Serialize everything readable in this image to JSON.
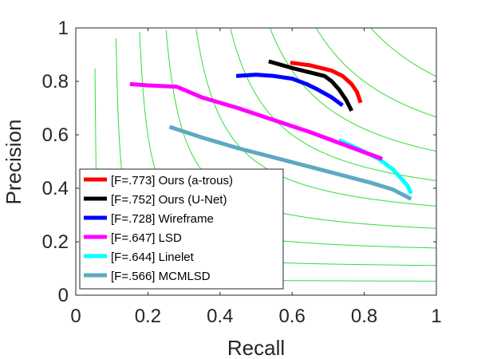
{
  "chart_data": {
    "type": "line",
    "title": "",
    "xlabel": "Recall",
    "ylabel": "Precision",
    "xlim": [
      0,
      1
    ],
    "ylim": [
      0,
      1
    ],
    "xticks": [
      "0",
      "0.2",
      "0.4",
      "0.6",
      "0.8",
      "1"
    ],
    "yticks": [
      "0",
      "0.2",
      "0.4",
      "0.6",
      "0.8",
      "1"
    ],
    "grid": false,
    "legend_position": "bottom-left",
    "iso_f_curve_color": "#33dd33",
    "iso_f_values": [
      0.1,
      0.2,
      0.3,
      0.4,
      0.5,
      0.6,
      0.7,
      0.8,
      0.9
    ],
    "series": [
      {
        "name": "[F=.773] Ours (a-trous)",
        "color": "#ff0000",
        "x": [
          0.595,
          0.65,
          0.71,
          0.74,
          0.765,
          0.78,
          0.79
        ],
        "y": [
          0.87,
          0.86,
          0.84,
          0.82,
          0.79,
          0.76,
          0.72
        ]
      },
      {
        "name": "[F=.752] Ours (U-Net)",
        "color": "#000000",
        "x": [
          0.535,
          0.6,
          0.66,
          0.69,
          0.71,
          0.73,
          0.75,
          0.765
        ],
        "y": [
          0.875,
          0.85,
          0.83,
          0.82,
          0.8,
          0.77,
          0.73,
          0.69
        ]
      },
      {
        "name": "[F=.728] Wireframe",
        "color": "#0000ff",
        "x": [
          0.445,
          0.5,
          0.55,
          0.6,
          0.64,
          0.67,
          0.69,
          0.71,
          0.74
        ],
        "y": [
          0.82,
          0.825,
          0.82,
          0.81,
          0.79,
          0.77,
          0.755,
          0.74,
          0.71
        ]
      },
      {
        "name": "[F=.647] LSD",
        "color": "#ff00ff",
        "x": [
          0.15,
          0.2,
          0.28,
          0.35,
          0.45,
          0.55,
          0.65,
          0.72,
          0.79,
          0.85
        ],
        "y": [
          0.79,
          0.785,
          0.78,
          0.74,
          0.7,
          0.655,
          0.61,
          0.575,
          0.54,
          0.51
        ]
      },
      {
        "name": "[F=.644] Linelet",
        "color": "#00ffff",
        "x": [
          0.73,
          0.78,
          0.84,
          0.88,
          0.9,
          0.92,
          0.93
        ],
        "y": [
          0.58,
          0.55,
          0.51,
          0.47,
          0.44,
          0.41,
          0.38
        ]
      },
      {
        "name": "[F=.566] MCMLSD",
        "color": "#5fa8c4",
        "x": [
          0.26,
          0.35,
          0.45,
          0.55,
          0.65,
          0.75,
          0.82,
          0.88,
          0.93
        ],
        "y": [
          0.63,
          0.59,
          0.55,
          0.515,
          0.48,
          0.445,
          0.42,
          0.395,
          0.36
        ]
      }
    ]
  }
}
